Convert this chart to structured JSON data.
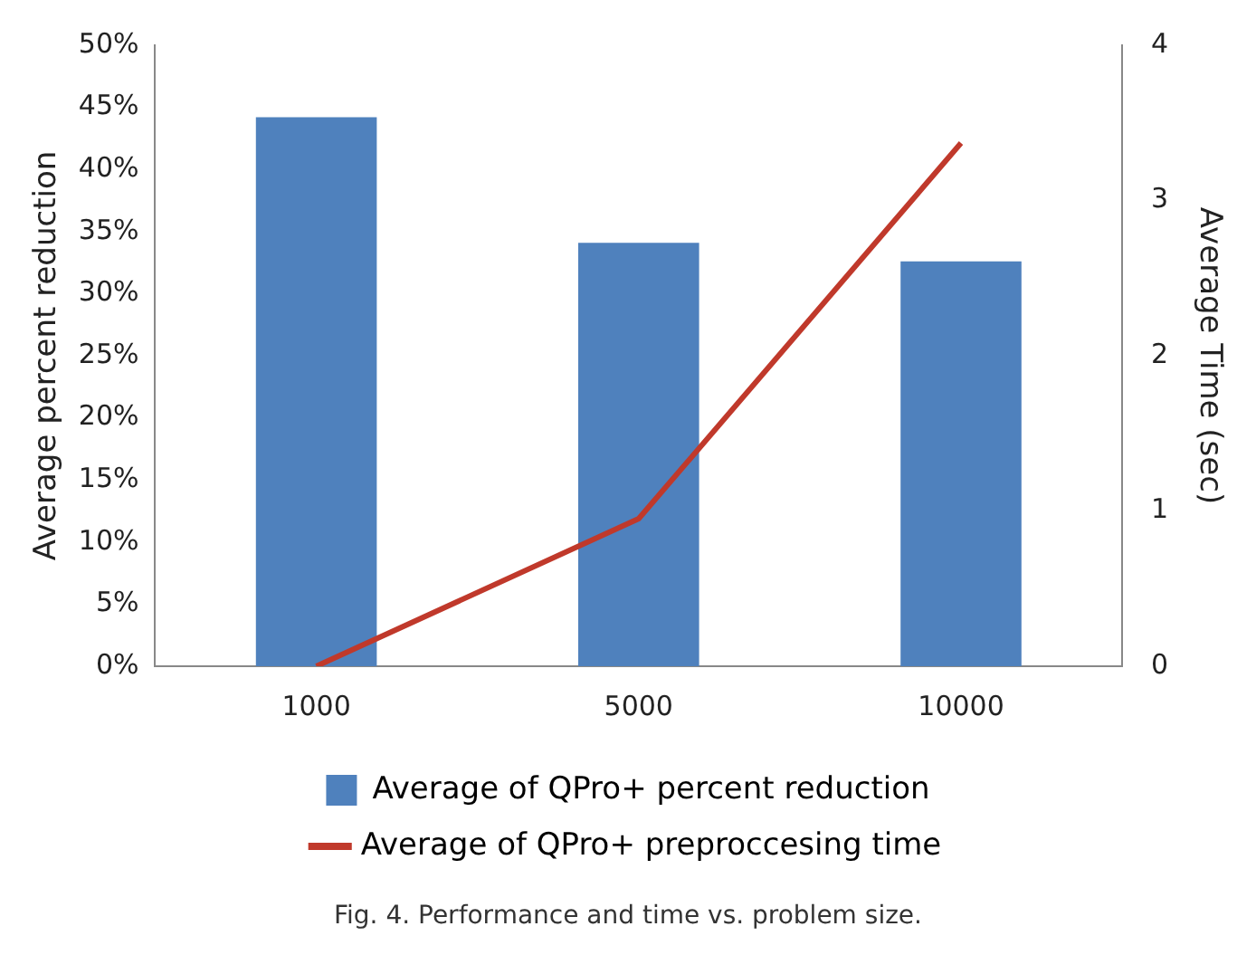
{
  "chart_data": {
    "type": "bar",
    "categories": [
      "1000",
      "5000",
      "10000"
    ],
    "series": [
      {
        "name": "Average of QPro+ percent reduction",
        "color": "#4f81bd",
        "values": [
          44.2,
          34.1,
          32.6
        ]
      },
      {
        "name": "Average of QPro+ preproccesing time",
        "type": "line",
        "axis": "y2",
        "color": "#c0392b",
        "values": [
          0,
          0.95,
          3.37
        ]
      }
    ],
    "ylabel": "Average percent reduction",
    "y2label": "Average Time (sec)",
    "ylim": [
      0,
      50
    ],
    "yticks": [
      {
        "value": 0,
        "label": "0%"
      },
      {
        "value": 5,
        "label": "5%"
      },
      {
        "value": 10,
        "label": "10%"
      },
      {
        "value": 15,
        "label": "15%"
      },
      {
        "value": 20,
        "label": "20%"
      },
      {
        "value": 25,
        "label": "25%"
      },
      {
        "value": 30,
        "label": "30%"
      },
      {
        "value": 35,
        "label": "35%"
      },
      {
        "value": 40,
        "label": "40%"
      },
      {
        "value": 45,
        "label": "45%"
      },
      {
        "value": 50,
        "label": "50%"
      }
    ],
    "y2lim": [
      0,
      4
    ],
    "y2ticks": [
      0,
      1,
      2,
      3,
      4
    ],
    "legend": "bottom",
    "grid": false,
    "marker": "none",
    "line_style": "solid",
    "annotations": [
      "Fig. 4.  Performance and time vs. problem size."
    ]
  }
}
